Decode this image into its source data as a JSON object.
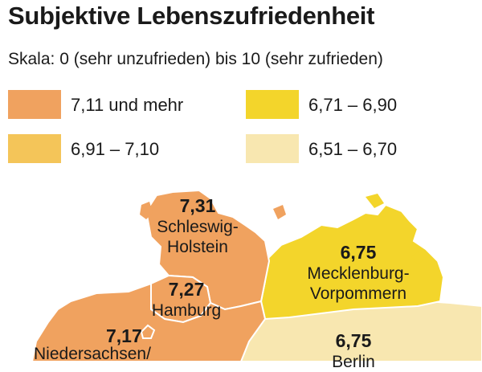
{
  "title": "Subjektive Lebenszufriedenheit",
  "subtitle": "Skala: 0 (sehr unzufrieden) bis 10 (sehr zufrieden)",
  "colors": {
    "class1": "#f0a25f",
    "class2": "#f4c559",
    "class3": "#f3d52b",
    "class4": "#f8e7b0",
    "border": "#ffffff"
  },
  "legend": [
    {
      "label": "7,11 und mehr"
    },
    {
      "label": "6,91 – 7,10"
    },
    {
      "label": "6,71 – 6,90"
    },
    {
      "label": "6,51 – 6,70"
    }
  ],
  "regions": [
    {
      "name_line1": "Schleswig-",
      "name_line2": "Holstein",
      "value": "7,31"
    },
    {
      "name_line1": "Hamburg",
      "value": "7,27"
    },
    {
      "name_line1": "Niedersachsen/",
      "value": "7,17"
    },
    {
      "name_line1": "Mecklenburg-",
      "name_line2": "Vorpommern",
      "value": "6,75"
    },
    {
      "name_line1": "Berlin",
      "value": "6,75"
    }
  ]
}
